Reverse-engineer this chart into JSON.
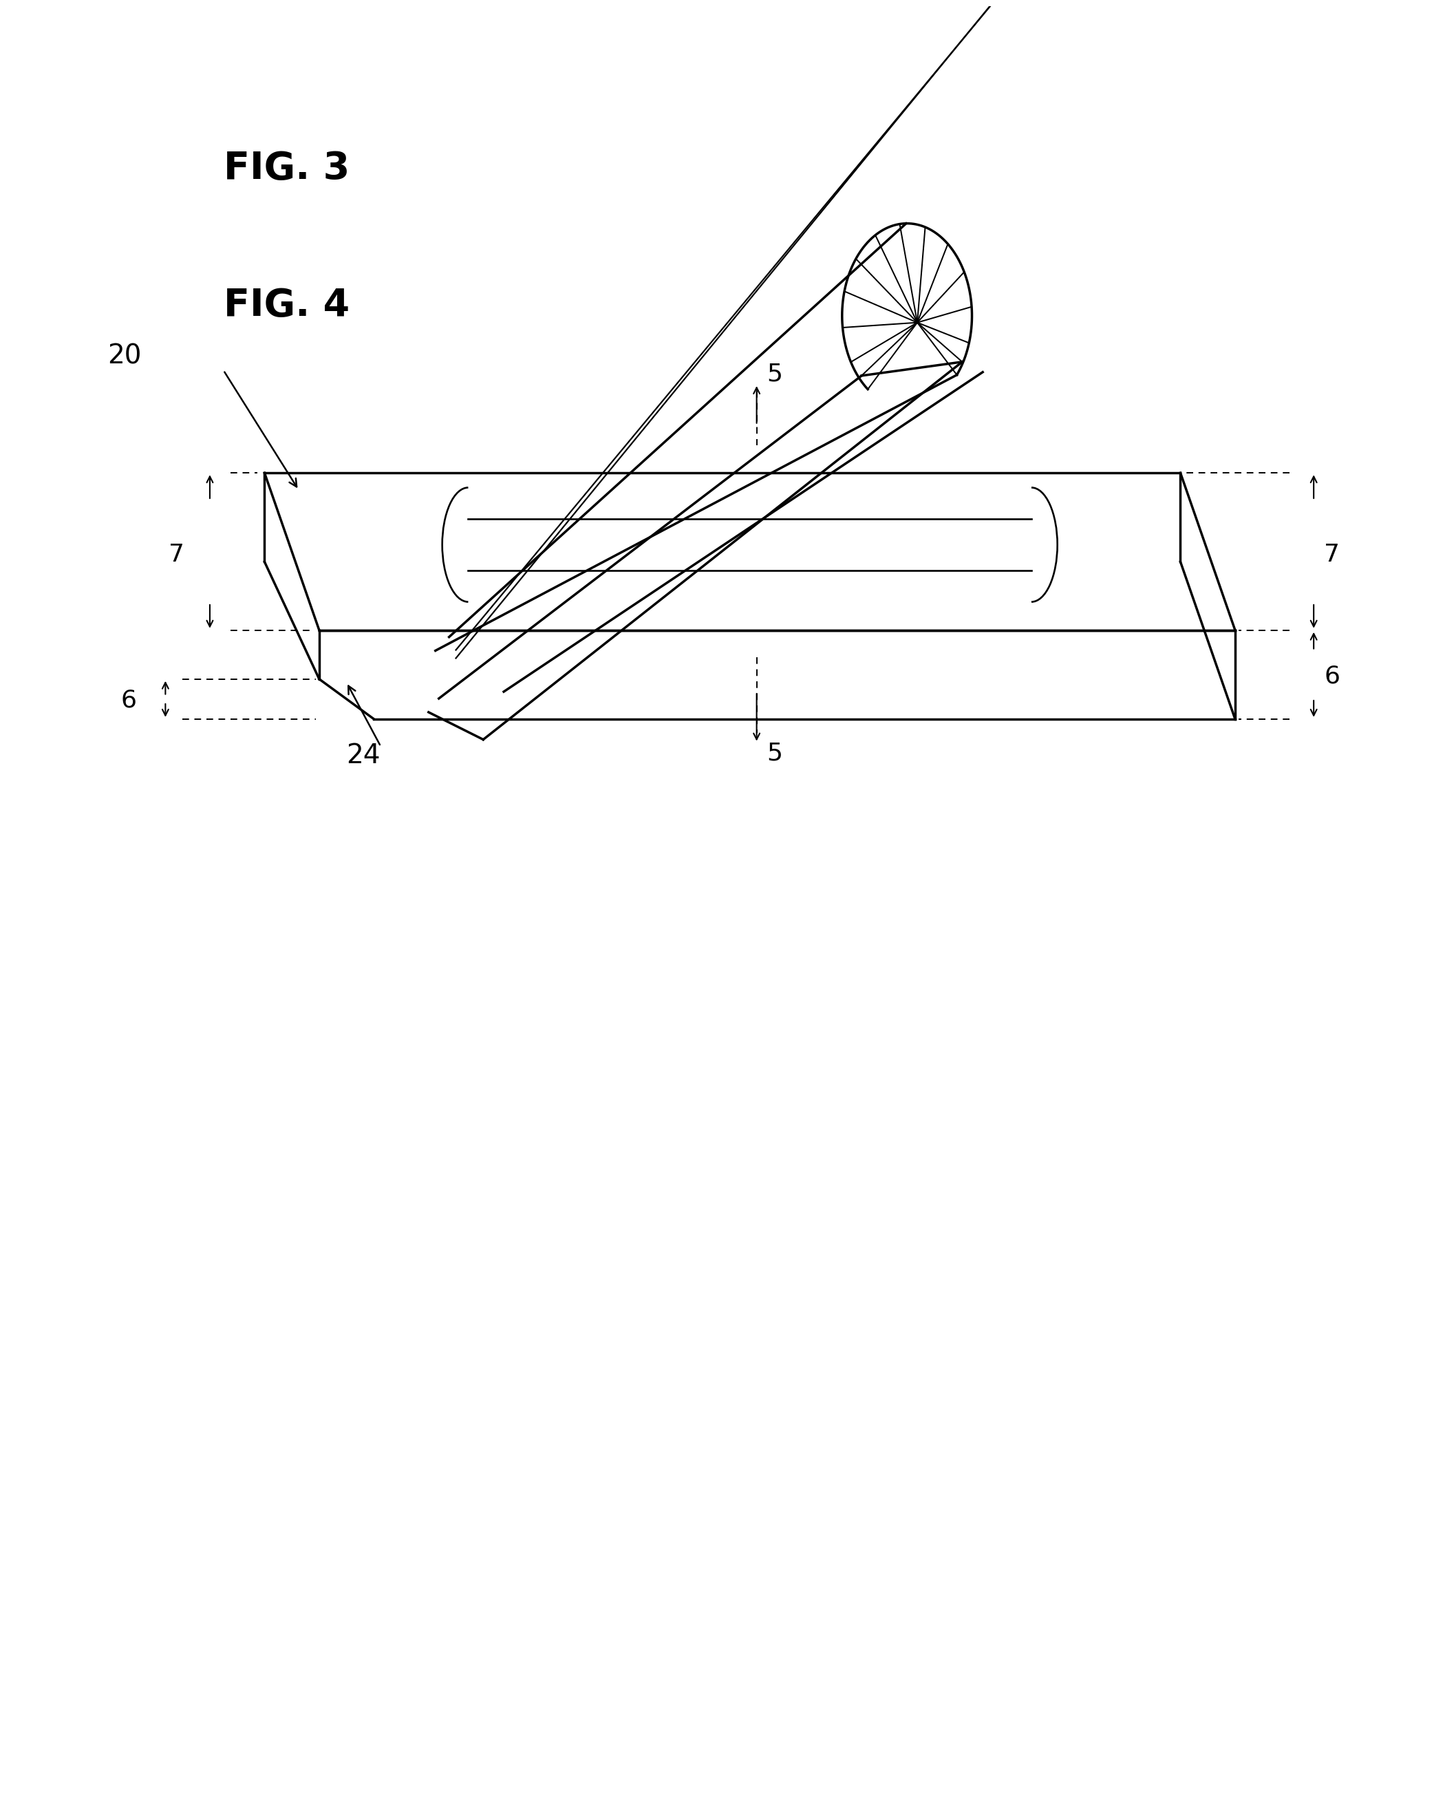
{
  "fig3_label": "FIG. 3",
  "fig4_label": "FIG. 4",
  "bg_color": "#ffffff",
  "line_color": "#000000",
  "lw_main": 2.5,
  "lw_thin": 1.6,
  "lw_dashed": 1.4
}
